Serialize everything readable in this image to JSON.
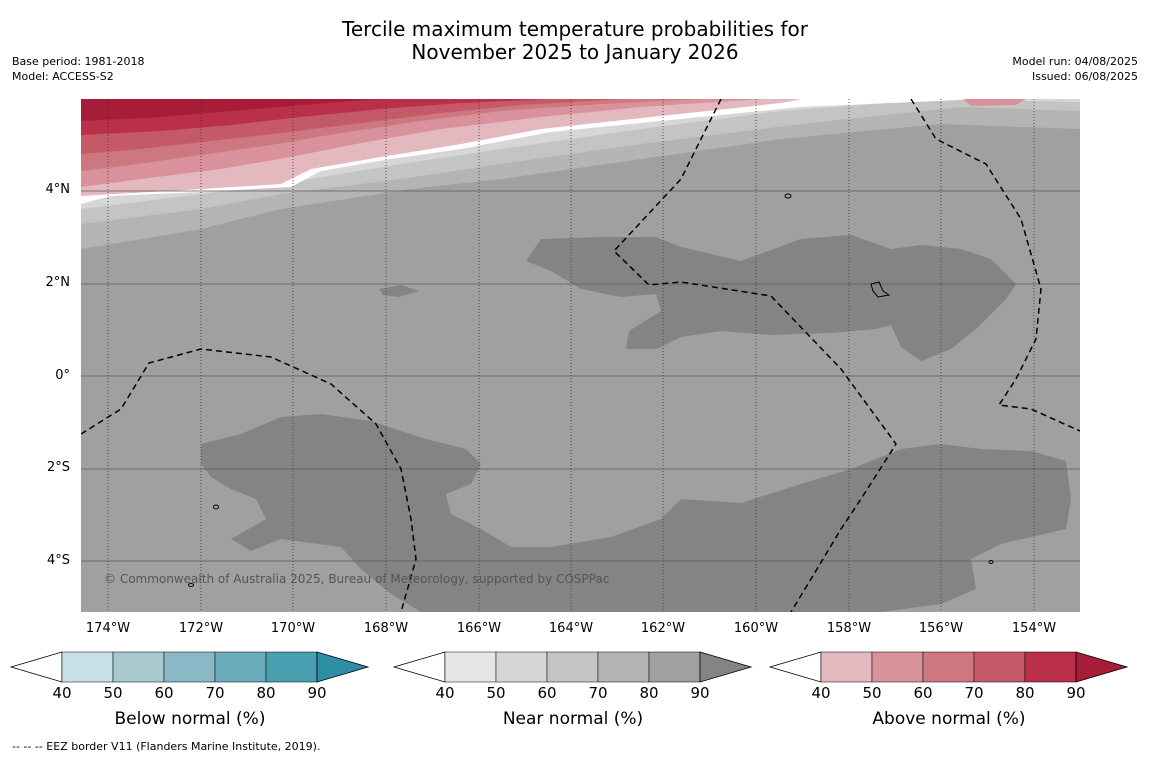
{
  "title_line1": "Tercile maximum temperature probabilities for",
  "title_line2": "November 2025 to January 2026",
  "meta_left": [
    "Base period: 1981-2018",
    "Model: ACCESS-S2"
  ],
  "meta_right": [
    "Model run: 04/08/2025",
    "Issued: 06/08/2025"
  ],
  "lat_labels": [
    "4°N",
    "2°N",
    "0°",
    "2°S",
    "4°S"
  ],
  "lon_labels": [
    "174°W",
    "172°W",
    "170°W",
    "168°W",
    "166°W",
    "164°W",
    "162°W",
    "160°W",
    "158°W",
    "156°W",
    "154°W"
  ],
  "copyright": "© Commonwealth of Australia 2025, Bureau of Meteorology, supported by COSPPac",
  "colorbars": [
    {
      "title": "Below normal (%)",
      "ticks": [
        "40",
        "50",
        "60",
        "70",
        "80",
        "90"
      ],
      "colors": [
        "#ffffff",
        "#c8e1e7",
        "#a8c9ce",
        "#8bb8c6",
        "#6aacbb",
        "#4a9fb1",
        "#2e8ea5"
      ]
    },
    {
      "title": "Near normal (%)",
      "ticks": [
        "40",
        "50",
        "60",
        "70",
        "80",
        "90"
      ],
      "colors": [
        "#ffffff",
        "#e6e6e6",
        "#d6d6d6",
        "#c4c4c4",
        "#b4b4b4",
        "#a0a0a0",
        "#848484"
      ]
    },
    {
      "title": "Above normal (%)",
      "ticks": [
        "40",
        "50",
        "60",
        "70",
        "80",
        "90"
      ],
      "colors": [
        "#ffffff",
        "#e3b8be",
        "#d9929b",
        "#cd7780",
        "#c45a67",
        "#b93048",
        "#a71c38"
      ]
    }
  ],
  "footnote": "--  --  -- EEZ border V11 (Flanders Marine Institute, 2019)."
}
